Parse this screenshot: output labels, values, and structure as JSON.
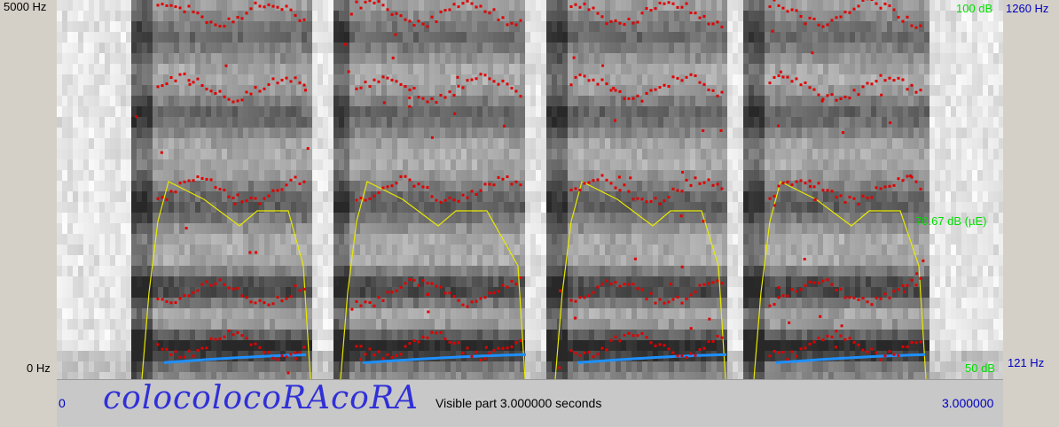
{
  "axes": {
    "freq_top": "5000 Hz",
    "freq_bottom": "0 Hz",
    "db_top": "100 dB",
    "db_mid": "70.67 dB (µE)",
    "db_bottom": "50 dB",
    "pitch_top": "1260 Hz",
    "pitch_bottom": "121 Hz"
  },
  "bottom": {
    "time_start": "0",
    "transcript": "colocolocoRAcoRA",
    "visible_part": "Visible part 3.000000 seconds",
    "time_end": "3.000000"
  },
  "colors": {
    "background": "#d4d0c8",
    "formant": "#e00000",
    "intensity": "#e8e800",
    "pitch": "#1e90ff",
    "db_labels": "#00dd00",
    "pitch_labels": "#0000c0",
    "transcript": "#3030d8"
  }
}
